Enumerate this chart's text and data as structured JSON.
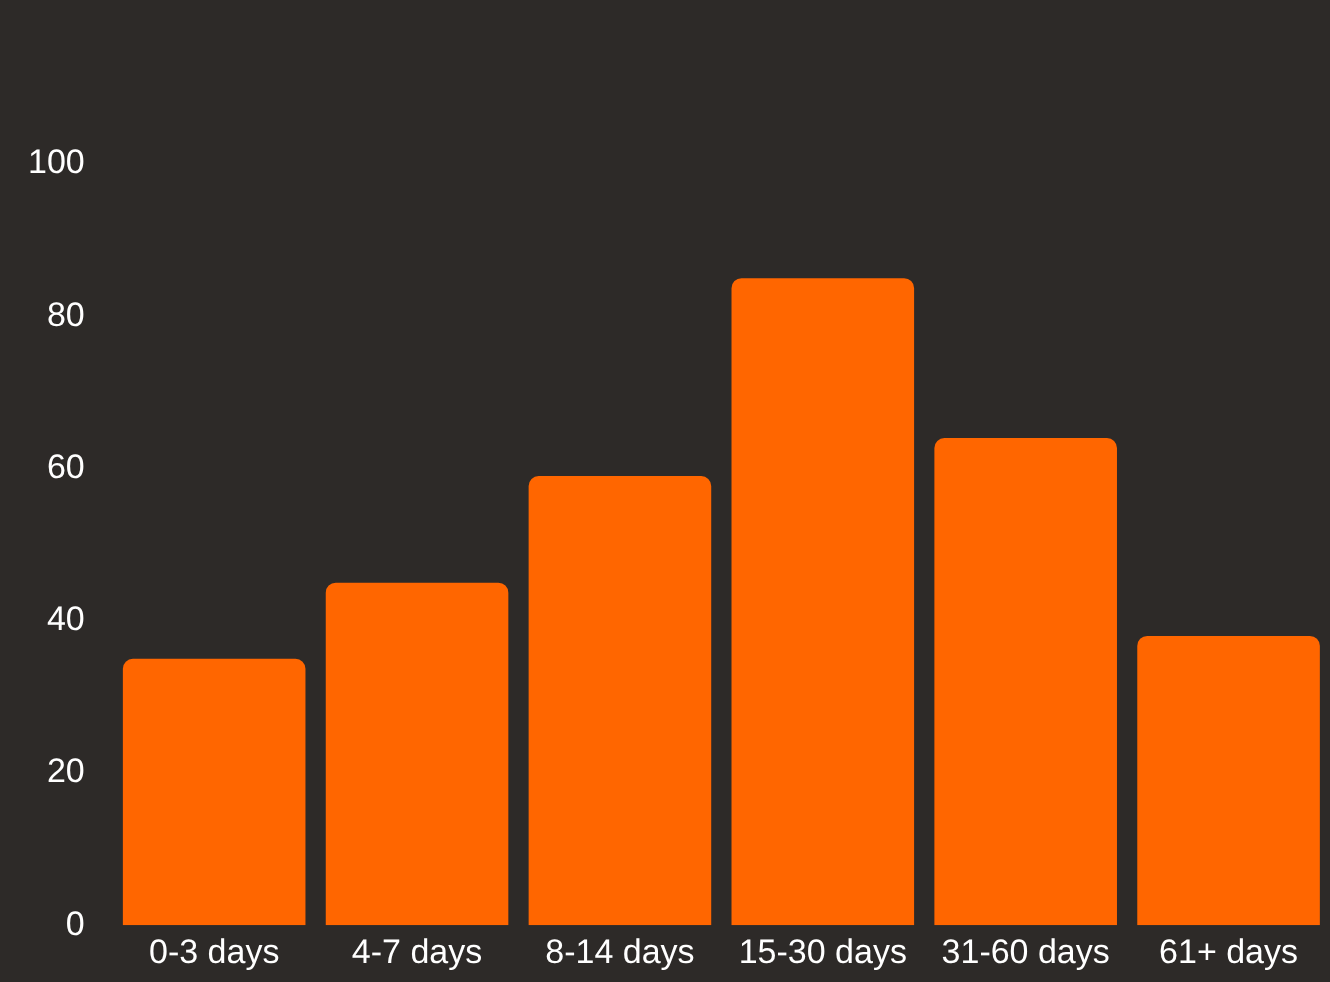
{
  "chart_data": {
    "type": "bar",
    "categories": [
      "0-3 days",
      "4-7 days",
      "8-14 days",
      "15-30 days",
      "31-60 days",
      "61+ days"
    ],
    "values": [
      35,
      45,
      59,
      85,
      64,
      38
    ],
    "color": "#ff6600",
    "ylim": [
      0,
      100
    ],
    "yticks": [
      0,
      20,
      40,
      60,
      80,
      100
    ],
    "grid": false,
    "legend": false
  }
}
